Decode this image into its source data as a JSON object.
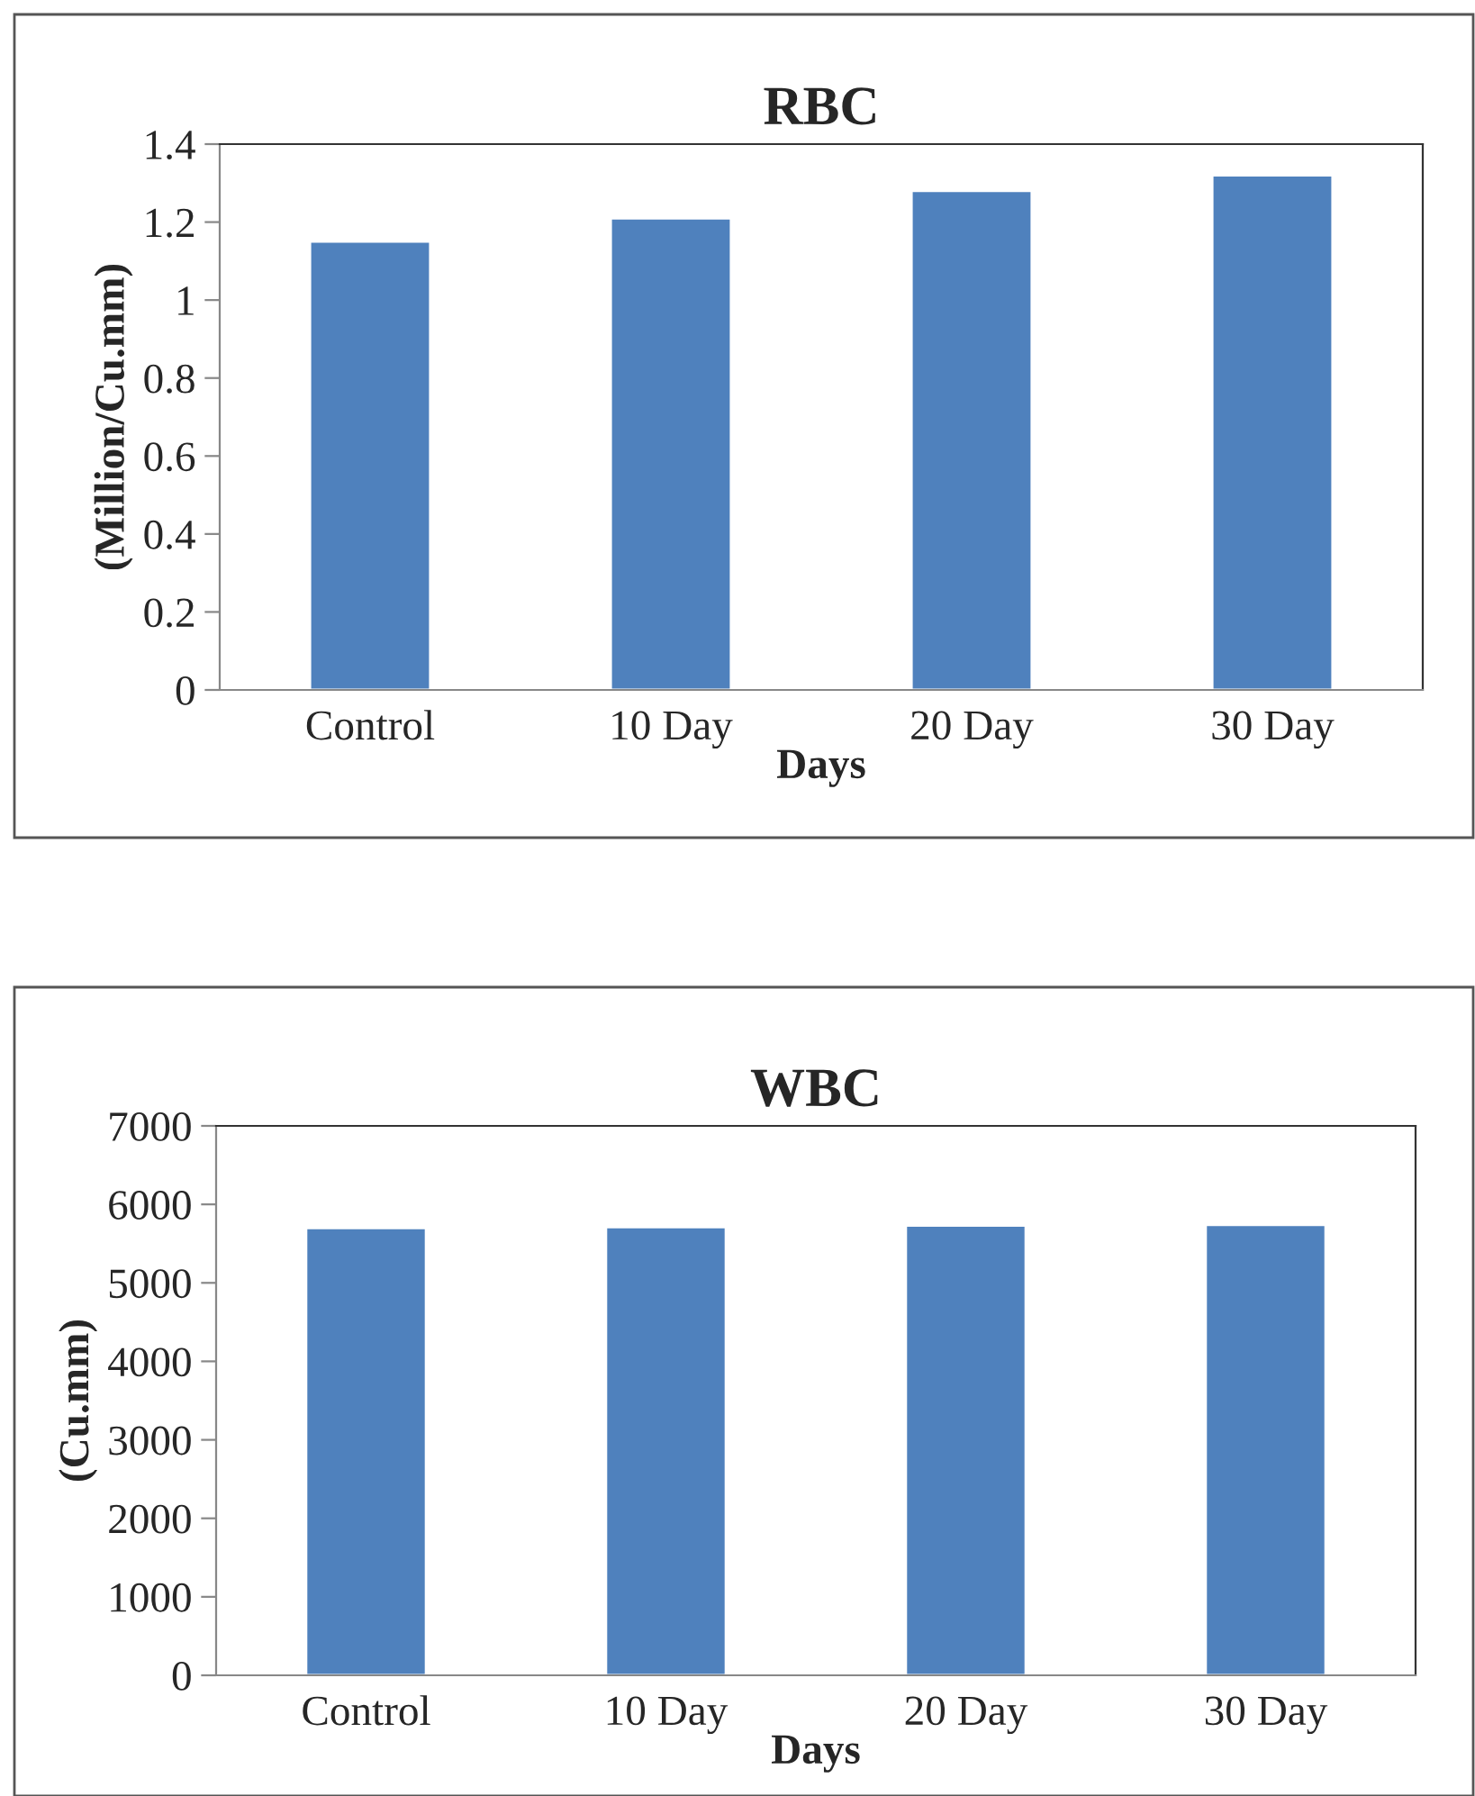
{
  "chart_data": [
    {
      "type": "bar",
      "title": "RBC",
      "xlabel": "Days",
      "ylabel": "(Million/Cu.mm)",
      "categories": [
        "Control",
        "10 Day",
        "20 Day",
        "30 Day"
      ],
      "values": [
        1.15,
        1.21,
        1.28,
        1.32
      ],
      "color": "#4f81bd",
      "ylim": [
        0,
        1.4
      ],
      "yticks": [
        {
          "value": 0,
          "label": "0"
        },
        0.2,
        0.4,
        0.6,
        0.8,
        {
          "value": 1,
          "label": "1"
        },
        1.2,
        1.4
      ],
      "grid": false,
      "legend": false
    },
    {
      "type": "bar",
      "title": "WBC",
      "xlabel": "Days",
      "ylabel": "(Cu.mm)",
      "categories": [
        "Control",
        "10 Day",
        "20 Day",
        "30 Day"
      ],
      "values": [
        5700,
        5710,
        5730,
        5740
      ],
      "color": "#4f81bd",
      "ylim": [
        0,
        7000
      ],
      "yticks": [
        0,
        1000,
        2000,
        3000,
        4000,
        5000,
        6000,
        7000
      ],
      "grid": false,
      "legend": false
    }
  ]
}
